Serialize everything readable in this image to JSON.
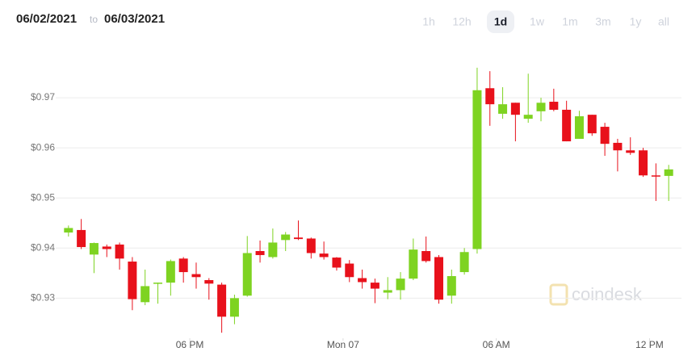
{
  "header": {
    "from": "06/02/2021",
    "to_word": "to",
    "to": "06/03/2021",
    "ranges": [
      "1h",
      "12h",
      "1d",
      "1w",
      "1m",
      "3m",
      "1y",
      "all"
    ],
    "active_range": "1d"
  },
  "watermark": "coindesk",
  "chart_data": {
    "type": "candlestick",
    "up_color": "#7ed321",
    "down_color": "#e8111b",
    "grid": true,
    "x": [
      13.25,
      13.75,
      14.25,
      14.75,
      15.25,
      15.75,
      16.25,
      16.75,
      17.25,
      17.75,
      18.25,
      18.75,
      19.25,
      19.75,
      20.25,
      20.75,
      21.25,
      21.75,
      22.25,
      22.75,
      23.25,
      23.75,
      24.25,
      24.75,
      25.25,
      25.75,
      26.25,
      26.75,
      27.25,
      27.75,
      28.25,
      28.75,
      29.25,
      29.75,
      30.25,
      30.75,
      31.25,
      31.75,
      32.25,
      32.75,
      33.25,
      33.75,
      34.25,
      34.75,
      35.25,
      35.75,
      36.25,
      36.75
    ],
    "open": [
      0.9431,
      0.9436,
      0.9387,
      0.9403,
      0.9407,
      0.9373,
      0.9292,
      0.9329,
      0.9331,
      0.9379,
      0.9348,
      0.9336,
      0.9327,
      0.9263,
      0.9305,
      0.9394,
      0.9382,
      0.9416,
      0.9421,
      0.9419,
      0.9389,
      0.9381,
      0.9369,
      0.934,
      0.9331,
      0.9311,
      0.9316,
      0.9339,
      0.9394,
      0.9382,
      0.9305,
      0.9352,
      0.9398,
      0.9719,
      0.9668,
      0.969,
      0.9658,
      0.9673,
      0.9692,
      0.9676,
      0.9618,
      0.9666,
      0.9642,
      0.961,
      0.9595,
      0.9595,
      0.9545,
      0.9544
    ],
    "high": [
      0.9445,
      0.9458,
      0.9411,
      0.9407,
      0.9411,
      0.9382,
      0.9357,
      0.9331,
      0.9377,
      0.9382,
      0.9371,
      0.934,
      0.9331,
      0.9307,
      0.9424,
      0.9415,
      0.9439,
      0.9432,
      0.9455,
      0.9421,
      0.9413,
      0.9382,
      0.9376,
      0.9357,
      0.9339,
      0.9342,
      0.9352,
      0.9419,
      0.9423,
      0.9386,
      0.9357,
      0.94,
      0.976,
      0.9753,
      0.9721,
      0.969,
      0.9748,
      0.97,
      0.9718,
      0.9694,
      0.9674,
      0.9666,
      0.965,
      0.9618,
      0.9621,
      0.96,
      0.9569,
      0.9566
    ],
    "low": [
      0.9423,
      0.9398,
      0.935,
      0.9382,
      0.9357,
      0.9276,
      0.9286,
      0.9289,
      0.9305,
      0.9331,
      0.9319,
      0.9297,
      0.9231,
      0.9248,
      0.9303,
      0.9371,
      0.9379,
      0.9394,
      0.9416,
      0.9379,
      0.9377,
      0.9355,
      0.9332,
      0.9319,
      0.929,
      0.9298,
      0.9297,
      0.9336,
      0.9371,
      0.9289,
      0.9289,
      0.9347,
      0.9389,
      0.9644,
      0.9658,
      0.9613,
      0.965,
      0.9653,
      0.9673,
      0.9613,
      0.9618,
      0.9624,
      0.9584,
      0.9553,
      0.9586,
      0.9542,
      0.9494,
      0.9494
    ],
    "close": [
      0.944,
      0.9402,
      0.941,
      0.9398,
      0.9379,
      0.9298,
      0.9324,
      0.9331,
      0.9374,
      0.9352,
      0.9342,
      0.9329,
      0.9263,
      0.93,
      0.939,
      0.9386,
      0.9411,
      0.9427,
      0.9418,
      0.939,
      0.9382,
      0.9361,
      0.9342,
      0.9332,
      0.9319,
      0.9316,
      0.9339,
      0.9397,
      0.9374,
      0.9297,
      0.9344,
      0.9392,
      0.9715,
      0.9687,
      0.9687,
      0.9666,
      0.9666,
      0.969,
      0.9676,
      0.9613,
      0.9663,
      0.9629,
      0.9608,
      0.9595,
      0.959,
      0.9545,
      0.9544,
      0.9557
    ],
    "xlim": [
      12.75,
      37.25
    ],
    "xticks": [
      {
        "value": 18,
        "label": "06 PM"
      },
      {
        "value": 24,
        "label": "Mon 07"
      },
      {
        "value": 30,
        "label": "06 AM"
      },
      {
        "value": 36,
        "label": "12 PM"
      }
    ],
    "ylim": [
      0.922,
      0.98
    ],
    "yticks": [
      {
        "value": 0.93,
        "label": "$0.93"
      },
      {
        "value": 0.94,
        "label": "$0.94"
      },
      {
        "value": 0.95,
        "label": "$0.95"
      },
      {
        "value": 0.96,
        "label": "$0.96"
      },
      {
        "value": 0.97,
        "label": "$0.97"
      }
    ]
  }
}
